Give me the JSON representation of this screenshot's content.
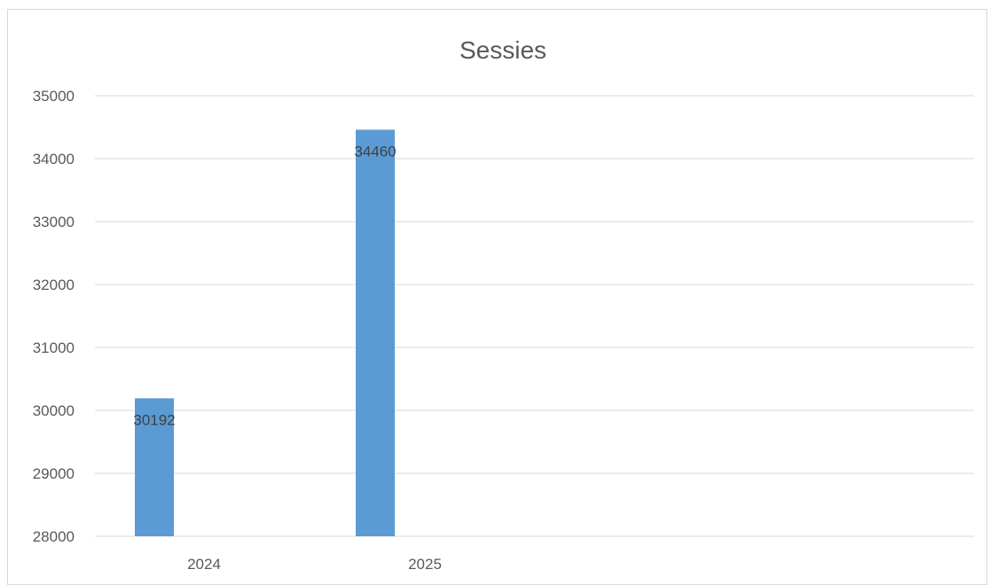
{
  "chart_data": {
    "type": "bar",
    "title": "Sessies",
    "categories": [
      "2024",
      "2025"
    ],
    "series": [
      {
        "values": [
          30192,
          34460
        ]
      }
    ],
    "ylim": [
      28000,
      35000
    ],
    "yticks": [
      28000,
      29000,
      30000,
      31000,
      32000,
      33000,
      34000,
      35000
    ],
    "xlabel": "",
    "ylabel": "",
    "grid": true,
    "legend": "none",
    "colors": {
      "bar": "#5b9bd5",
      "grid": "#d9d9d9",
      "text": "#595959"
    }
  }
}
